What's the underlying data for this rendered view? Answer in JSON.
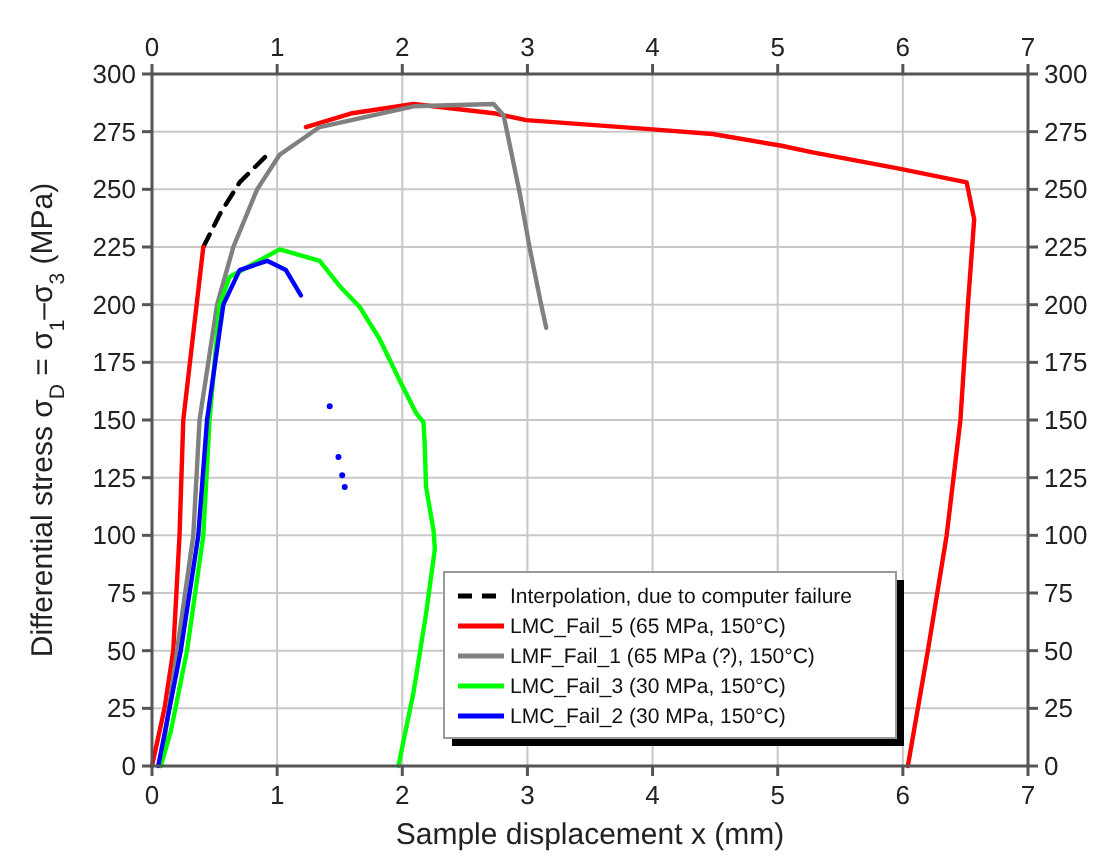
{
  "chart_data": {
    "type": "line",
    "xlabel": "Sample displacement x (mm)",
    "ylabel": "Differential stress σ$_{D}$ = σ$_{1}$–σ$_{3}$ (MPa)",
    "xlim": [
      0,
      7
    ],
    "xticks": [
      0,
      1,
      2,
      3,
      4,
      5,
      6,
      7
    ],
    "x2lim": [
      0,
      7
    ],
    "x2ticks": [
      0,
      1,
      2,
      3,
      4,
      5,
      6,
      7
    ],
    "ylim": [
      0,
      300
    ],
    "yticks": [
      0,
      25,
      50,
      75,
      100,
      125,
      150,
      175,
      200,
      225,
      250,
      275,
      300
    ],
    "y2lim": [
      0,
      300
    ],
    "y2ticks": [
      0,
      25,
      50,
      75,
      100,
      125,
      150,
      175,
      200,
      225,
      250,
      275,
      300
    ],
    "grid": true,
    "legend": "bottom right",
    "marker": "none",
    "line_style": "solid",
    "series": [
      {
        "name": "Interpolation, due to computer failure",
        "color": "#000000",
        "line_style": "dashed",
        "x": [
          0.41,
          0.55,
          0.7,
          0.94
        ],
        "values": [
          225,
          240,
          253,
          266
        ]
      },
      {
        "name": "LMC_Fail_5 (65 MPa, 150°C)",
        "color": "#ff0000",
        "x": [
          0,
          0.1,
          0.17,
          0.22,
          0.25,
          0.41,
          null,
          1.23,
          1.6,
          2.09,
          2.73,
          2.99,
          4.0,
          4.48,
          5.02,
          5.28,
          5.97,
          6.51,
          6.57,
          6.52,
          6.46,
          6.35,
          6.2,
          6.04
        ],
        "values": [
          0,
          25,
          50,
          100,
          150,
          225,
          null,
          277,
          283,
          287,
          283,
          280,
          276,
          274,
          269,
          266,
          259,
          253,
          237,
          200,
          150,
          100,
          50,
          0
        ]
      },
      {
        "name": "LMF_Fail_1 (65 MPa (?), 150°C)",
        "color": "#808080",
        "x": [
          0.07,
          0.2,
          0.33,
          0.38,
          0.52,
          0.65,
          0.84,
          1.02,
          1.34,
          2.09,
          2.73,
          2.81,
          2.94,
          3.02,
          3.11,
          3.15
        ],
        "values": [
          0,
          50,
          100,
          150,
          200,
          225,
          250,
          265,
          277,
          286,
          287,
          282,
          248,
          224,
          200,
          190
        ]
      },
      {
        "name": "LMC_Fail_3 (30 MPa, 150°C)",
        "color": "#00ff00",
        "x": [
          0.07,
          0.15,
          0.28,
          0.41,
          0.46,
          0.54,
          0.62,
          1.02,
          1.34,
          1.5,
          1.66,
          1.82,
          1.98,
          2.11,
          2.17,
          2.18,
          2.19,
          2.25,
          2.26,
          2.19,
          2.09,
          1.98,
          1.97
        ],
        "values": [
          0,
          15,
          50,
          100,
          150,
          200,
          212,
          224,
          219,
          208,
          199,
          185,
          167,
          153,
          149,
          138,
          121,
          102,
          94,
          66,
          32,
          3,
          0
        ]
      },
      {
        "name": "LMC_Fail_2 (30 MPa, 150°C)",
        "color": "#0000ff",
        "x": [
          0.05,
          0.23,
          0.37,
          0.44,
          0.57,
          0.7,
          0.92,
          1.07,
          1.19
        ],
        "values": [
          0,
          50,
          100,
          150,
          200,
          215,
          219,
          215,
          204
        ]
      },
      {
        "type": "scatter",
        "marker": "circle",
        "color": "#0000ff",
        "x": [
          1.42,
          1.49,
          1.52,
          1.54
        ],
        "values": [
          156,
          134,
          126,
          121
        ]
      }
    ]
  }
}
